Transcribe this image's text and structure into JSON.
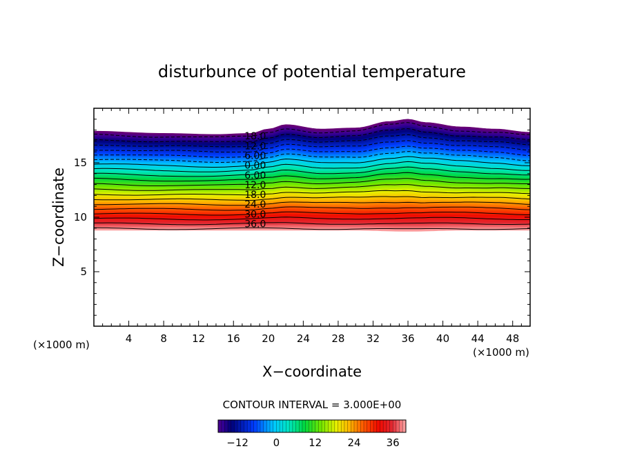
{
  "chart_data": {
    "type": "contour",
    "title": "disturbunce of potential temperature",
    "xlabel": "X−coordinate",
    "ylabel": "Z−coordinate",
    "x_unit_label": "(×1000 m)",
    "y_unit_label": "(×1000 m)",
    "xlim": [
      0,
      50
    ],
    "ylim": [
      0,
      20
    ],
    "x_ticks": [
      4,
      8,
      12,
      16,
      20,
      24,
      28,
      32,
      36,
      40,
      44,
      48
    ],
    "x_tick_labels": [
      "4",
      "8",
      "12",
      "16",
      "20",
      "24",
      "28",
      "32",
      "36",
      "40",
      "44",
      "48"
    ],
    "y_ticks": [
      5,
      10,
      15
    ],
    "y_tick_labels": [
      "5",
      "10",
      "15"
    ],
    "contour_interval_label": "CONTOUR INTERVAL = 3.000E+00",
    "contour_levels": [
      -18,
      -15,
      -12,
      -9,
      -6,
      -3,
      0,
      3,
      6,
      9,
      12,
      15,
      18,
      21,
      24,
      27,
      30,
      33,
      36,
      39
    ],
    "contour_labels": [
      {
        "text": "18.0",
        "level": -18
      },
      {
        "text": "12.0",
        "level": -12
      },
      {
        "text": "6.00",
        "level": -6
      },
      {
        "text": "0.00",
        "level": 0
      },
      {
        "text": "6.00",
        "level": 6
      },
      {
        "text": "12.0",
        "level": 12
      },
      {
        "text": "18.0",
        "level": 18
      },
      {
        "text": "24.0",
        "level": 24
      },
      {
        "text": "30.0",
        "level": 30
      },
      {
        "text": "36.0",
        "level": 36
      }
    ],
    "data_top": {
      "x": [
        0,
        8,
        14,
        18,
        20,
        22,
        26,
        30,
        34,
        36,
        38,
        42,
        46,
        50
      ],
      "z": [
        17.9,
        17.7,
        17.6,
        17.7,
        18.1,
        18.5,
        18.1,
        18.2,
        18.8,
        19.0,
        18.7,
        18.3,
        18.1,
        17.8
      ]
    },
    "data_bottom": {
      "x": [
        0,
        10,
        20,
        30,
        36,
        42,
        50
      ],
      "z": [
        8.8,
        8.8,
        8.8,
        8.8,
        8.7,
        8.8,
        8.8
      ]
    },
    "colorbar": {
      "range": [
        -18,
        40
      ],
      "tick_values": [
        -12,
        0,
        12,
        24,
        36
      ],
      "tick_labels": [
        "−12",
        "0",
        "12",
        "24",
        "36"
      ]
    }
  }
}
